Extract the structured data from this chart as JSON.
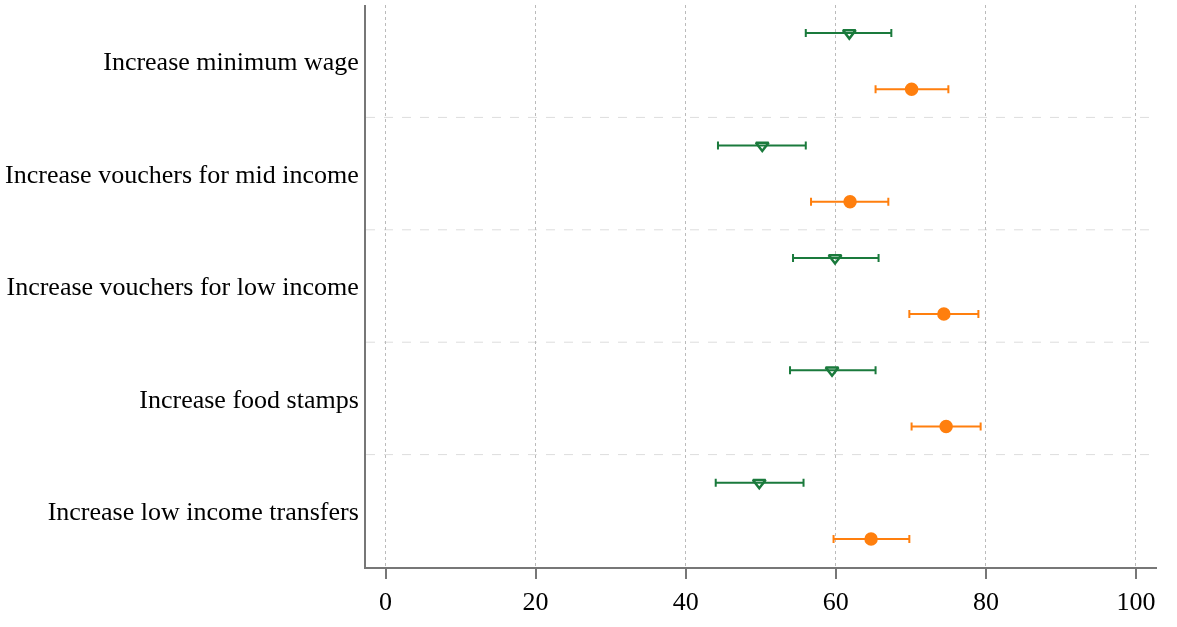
{
  "chart_data": {
    "type": "scatter",
    "orientation": "horizontal",
    "categories": [
      "Increase minimum wage",
      "Increase vouchers for mid income",
      "Increase vouchers for low income",
      "Increase food stamps",
      "Increase low income transfers"
    ],
    "series": [
      {
        "color": "#1a7a3c",
        "marker": "triangle",
        "values": [
          61.8,
          50.2,
          59.9,
          59.5,
          49.8
        ],
        "errors": [
          [
            56.0,
            67.4
          ],
          [
            44.3,
            56.0
          ],
          [
            54.3,
            65.7
          ],
          [
            53.9,
            65.3
          ],
          [
            44.0,
            55.7
          ]
        ]
      },
      {
        "color": "#ff7f0e",
        "marker": "circle",
        "values": [
          70.1,
          61.9,
          74.4,
          74.7,
          64.7
        ],
        "errors": [
          [
            65.3,
            75.0
          ],
          [
            56.7,
            67.0
          ],
          [
            69.8,
            79.0
          ],
          [
            70.1,
            79.3
          ],
          [
            59.7,
            69.8
          ]
        ]
      }
    ],
    "xlim": [
      -2.6,
      102.8
    ],
    "xticks": [
      0,
      20,
      40,
      60,
      80,
      100
    ],
    "grid": true
  }
}
